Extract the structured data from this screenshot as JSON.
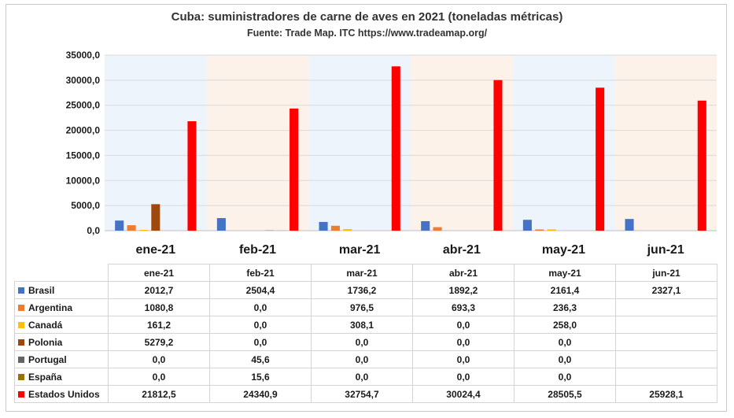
{
  "chart_data": {
    "type": "bar",
    "title": "Cuba: suministradores de carne de aves en 2021 (toneladas métricas)",
    "subtitle": "Fuente: Trade Map. ITC https://www.tradeamap.org/",
    "categories": [
      "ene-21",
      "feb-21",
      "mar-21",
      "abr-21",
      "may-21",
      "jun-21"
    ],
    "ylim": [
      0,
      35000
    ],
    "yticks": [
      "0,0",
      "5000,0",
      "10000,0",
      "15000,0",
      "20000,0",
      "25000,0",
      "30000,0",
      "35000,0"
    ],
    "grid": true,
    "legend": "table-below",
    "band_colors": [
      "#eef4fb",
      "#fcf2ea"
    ],
    "series": [
      {
        "name": "Brasil",
        "color": "#4472c4",
        "values": [
          2012.7,
          2504.4,
          1736.2,
          1892.2,
          2161.4,
          2327.1
        ],
        "labels": [
          "2012,7",
          "2504,4",
          "1736,2",
          "1892,2",
          "2161,4",
          "2327,1"
        ]
      },
      {
        "name": "Argentina",
        "color": "#ed7d31",
        "values": [
          1080.8,
          0.0,
          976.5,
          693.3,
          236.3,
          null
        ],
        "labels": [
          "1080,8",
          "0,0",
          "976,5",
          "693,3",
          "236,3",
          ""
        ]
      },
      {
        "name": "Canadá",
        "color": "#ffc000",
        "values": [
          161.2,
          0.0,
          308.1,
          0.0,
          258.0,
          null
        ],
        "labels": [
          "161,2",
          "0,0",
          "308,1",
          "0,0",
          "258,0",
          ""
        ]
      },
      {
        "name": "Polonia",
        "color": "#9e480e",
        "values": [
          5279.2,
          0.0,
          0.0,
          0.0,
          0.0,
          null
        ],
        "labels": [
          "5279,2",
          "0,0",
          "0,0",
          "0,0",
          "0,0",
          ""
        ]
      },
      {
        "name": "Portugal",
        "color": "#636363",
        "values": [
          0.0,
          45.6,
          0.0,
          0.0,
          0.0,
          null
        ],
        "labels": [
          "0,0",
          "45,6",
          "0,0",
          "0,0",
          "0,0",
          ""
        ]
      },
      {
        "name": "España",
        "color": "#997300",
        "values": [
          0.0,
          15.6,
          0.0,
          0.0,
          0.0,
          null
        ],
        "labels": [
          "0,0",
          "15,6",
          "0,0",
          "0,0",
          "0,0",
          ""
        ]
      },
      {
        "name": "Estados Unidos",
        "color": "#ff0000",
        "values": [
          21812.5,
          24340.9,
          32754.7,
          30024.4,
          28505.5,
          25928.1
        ],
        "labels": [
          "21812,5",
          "24340,9",
          "32754,7",
          "30024,4",
          "28505,5",
          "25928,1"
        ]
      }
    ]
  }
}
